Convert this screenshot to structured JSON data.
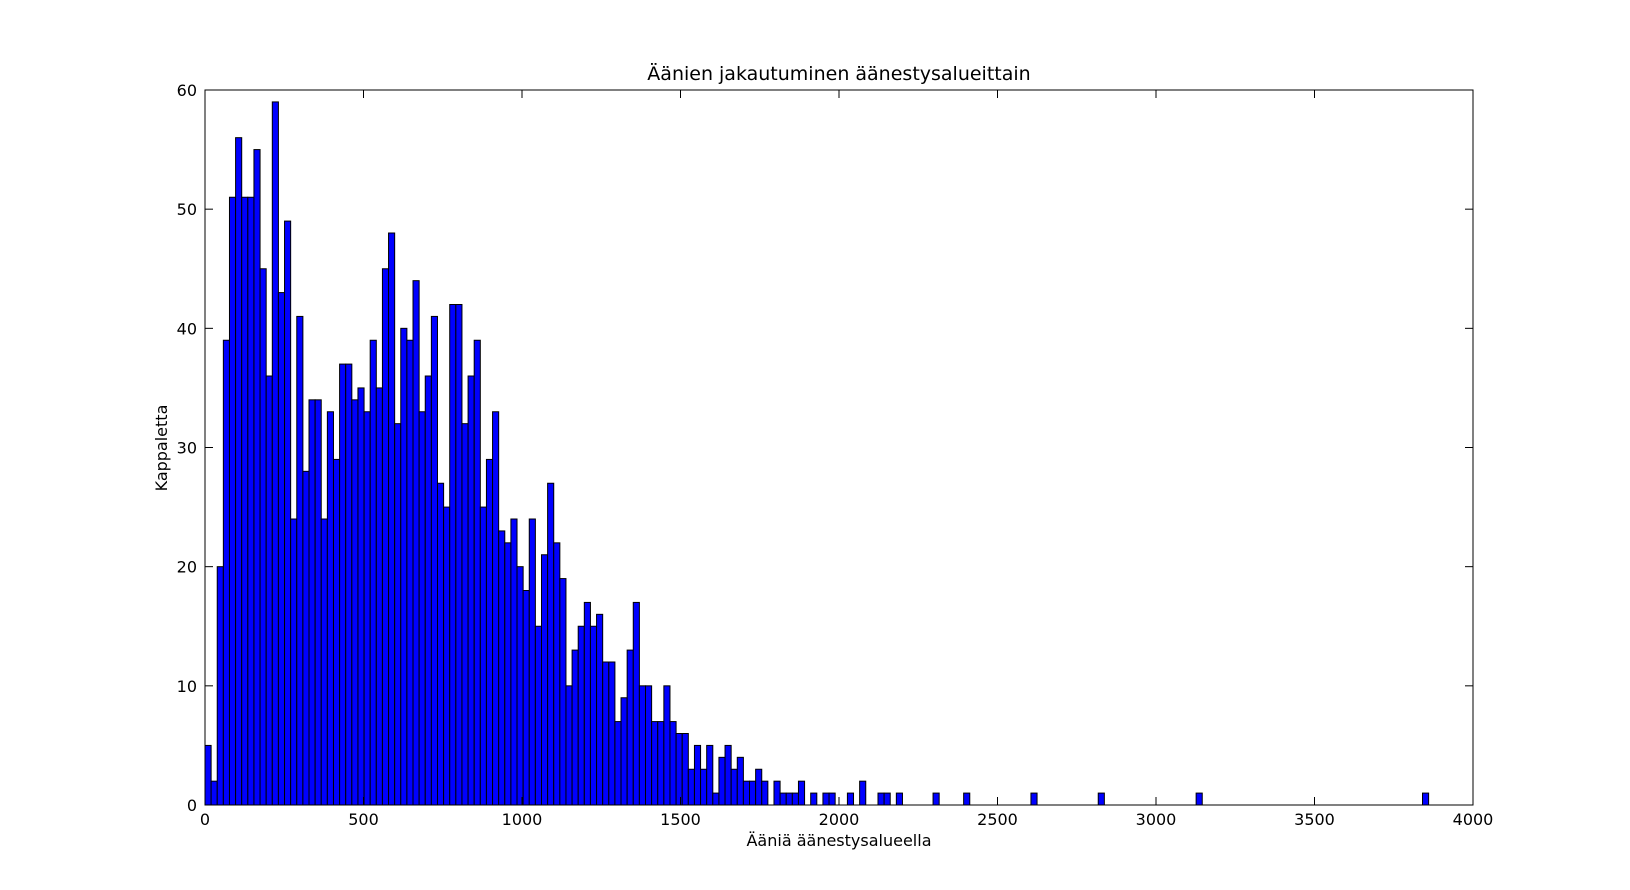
{
  "chart_data": {
    "type": "histogram",
    "title": "Äänien jakautuminen äänestysalueittain",
    "xlabel": "Ääniä äänestysalueella",
    "ylabel": "Kappaletta",
    "color": "#0000ff",
    "bins": [
      0,
      19.3,
      38.6,
      57.9,
      77.2,
      96.5,
      115.8,
      135.1,
      154.4,
      173.7,
      193,
      212.3,
      231.6,
      250.9,
      270.2,
      289.5,
      308.8,
      328.1,
      347.4,
      366.7,
      386,
      405.3,
      424.6,
      443.9,
      463.2,
      482.5,
      501.8,
      521.1,
      540.4,
      559.7,
      579,
      598.3,
      617.6,
      636.9,
      656.2,
      675.5,
      694.8,
      714.1,
      733.4,
      752.7,
      772,
      791.3,
      810.6,
      829.9,
      849.2,
      868.5,
      887.8,
      907.1,
      926.4,
      945.7,
      965,
      984.3,
      1003.6,
      1022.9,
      1042.2,
      1061.5,
      1080.8,
      1100.1,
      1119.4,
      1138.7,
      1158,
      1177.3,
      1196.6,
      1215.9,
      1235.2,
      1254.5,
      1273.8,
      1293.1,
      1312.4,
      1331.7,
      1351,
      1370.3,
      1389.6,
      1408.9,
      1428.2,
      1447.5,
      1466.8,
      1486.1,
      1505.4,
      1524.7,
      1544,
      1563.3,
      1582.6,
      1601.9,
      1621.2,
      1640.5,
      1659.8,
      1679.1,
      1698.4,
      1717.7,
      1737,
      1756.3,
      1775.6,
      1794.9,
      1814.2,
      1833.5,
      1852.8,
      1872.1,
      1891.4,
      1910.7,
      1930,
      1949.3,
      1968.6,
      1987.9,
      2007.2,
      2026.5,
      2045.8,
      2065.1,
      2084.4,
      2103.7,
      2123,
      2142.3,
      2161.6,
      2180.9,
      2200.2,
      2219.5,
      2238.8,
      2258.1,
      2277.4,
      2296.7,
      2316,
      2335.3,
      2354.6,
      2373.9,
      2393.2,
      2412.5,
      2431.8,
      2451.1,
      2470.4,
      2489.7,
      2509,
      2528.3,
      2547.6,
      2566.9,
      2586.2,
      2605.5,
      2624.8,
      2644.1,
      2663.4,
      2682.7,
      2702,
      2721.3,
      2740.6,
      2759.9,
      2779.2,
      2798.5,
      2817.8,
      2837.1,
      2856.4,
      2875.7,
      2895,
      2914.3,
      2933.6,
      2952.9,
      2972.2,
      2991.5,
      3010.8,
      3030.1,
      3049.4,
      3068.7,
      3088,
      3107.3,
      3126.6,
      3145.9,
      3165.2,
      3184.5,
      3203.8,
      3223.1,
      3242.4,
      3261.7,
      3281,
      3300.3,
      3319.6,
      3338.9,
      3358.2,
      3377.5,
      3396.8,
      3416.1,
      3435.4,
      3454.7,
      3474,
      3493.3,
      3512.6,
      3531.9,
      3551.2,
      3570.5,
      3589.8,
      3609.1,
      3628.4,
      3647.7,
      3667,
      3686.3,
      3705.6,
      3724.9,
      3744.2,
      3763.5,
      3782.8,
      3802.1,
      3821.4,
      3840.7,
      3860
    ],
    "counts": [
      5,
      2,
      20,
      39,
      51,
      56,
      51,
      51,
      55,
      45,
      36,
      59,
      43,
      49,
      24,
      41,
      28,
      34,
      34,
      24,
      33,
      29,
      37,
      37,
      34,
      35,
      33,
      39,
      35,
      45,
      48,
      32,
      40,
      39,
      44,
      33,
      36,
      41,
      27,
      25,
      42,
      42,
      32,
      36,
      39,
      25,
      29,
      33,
      23,
      22,
      24,
      20,
      18,
      24,
      15,
      21,
      27,
      22,
      19,
      10,
      13,
      15,
      17,
      15,
      16,
      12,
      12,
      7,
      9,
      13,
      17,
      10,
      10,
      7,
      7,
      10,
      7,
      6,
      6,
      3,
      5,
      3,
      5,
      1,
      4,
      5,
      3,
      4,
      2,
      2,
      3,
      2,
      0,
      2,
      1,
      1,
      1,
      2,
      0,
      1,
      0,
      1,
      1,
      0,
      0,
      1,
      0,
      2,
      0,
      0,
      1,
      1,
      0,
      1,
      0,
      0,
      0,
      0,
      0,
      1,
      0,
      0,
      0,
      0,
      1,
      0,
      0,
      0,
      0,
      0,
      0,
      0,
      0,
      0,
      0,
      1,
      0,
      0,
      0,
      0,
      0,
      0,
      0,
      0,
      0,
      0,
      1,
      0,
      0,
      0,
      0,
      0,
      0,
      0,
      0,
      0,
      0,
      0,
      0,
      0,
      0,
      0,
      1,
      0,
      0,
      0,
      0,
      0,
      0,
      0,
      0,
      0,
      0,
      0,
      0,
      0,
      0,
      0,
      0,
      0,
      0,
      0,
      0,
      0,
      0,
      0,
      0,
      0,
      0,
      0,
      0,
      0,
      0,
      0,
      0,
      0,
      0,
      0,
      0,
      1
    ],
    "xlim": [
      0,
      4000
    ],
    "xticks": [
      0,
      500,
      1000,
      1500,
      2000,
      2500,
      3000,
      3500,
      4000
    ],
    "ylim": [
      0,
      60
    ],
    "yticks": [
      0,
      10,
      20,
      30,
      40,
      50,
      60
    ]
  }
}
